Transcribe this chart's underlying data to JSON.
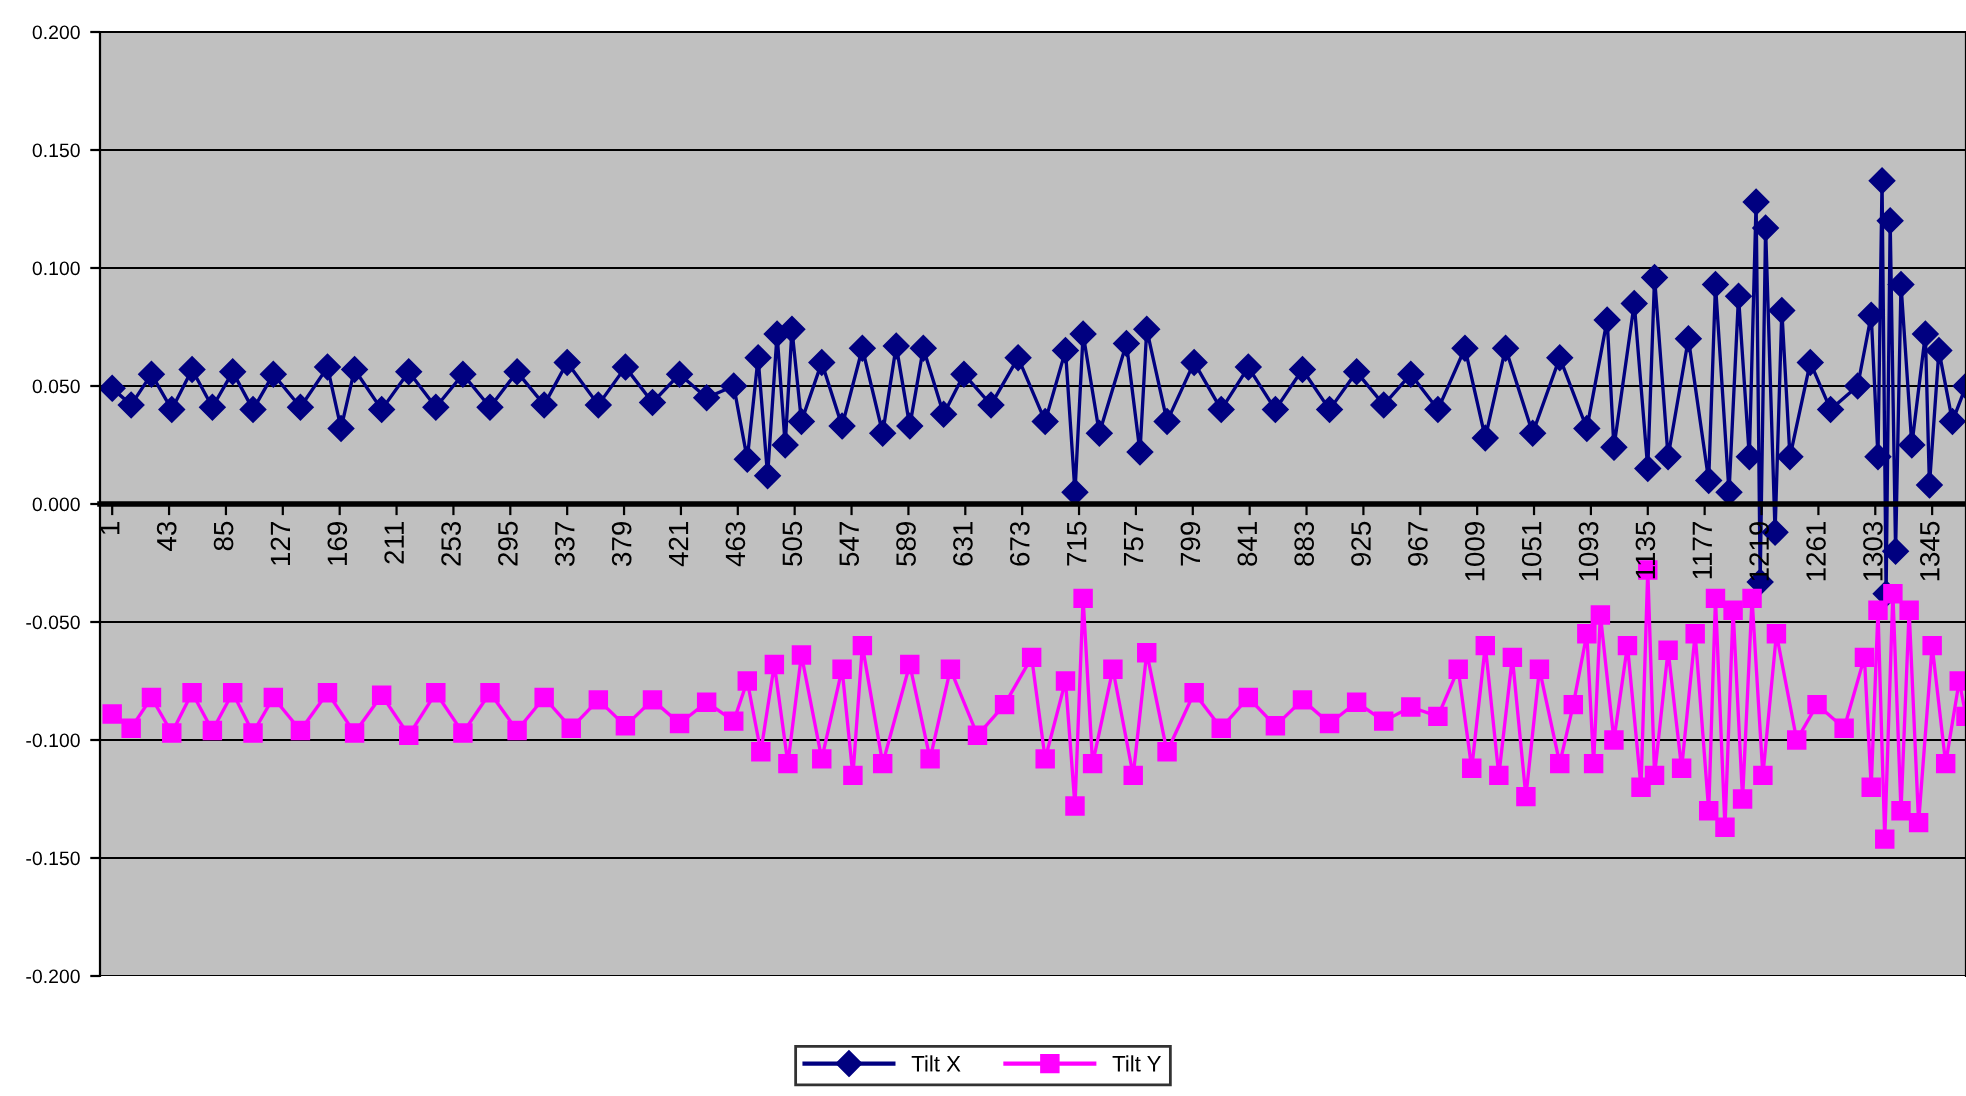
{
  "chart_data": {
    "type": "line",
    "ylim": [
      -0.2,
      0.2
    ],
    "yticks": [
      {
        "value": -0.2,
        "label": "-0.200"
      },
      {
        "value": -0.15,
        "label": "-0.150"
      },
      {
        "value": -0.1,
        "label": "-0.100"
      },
      {
        "value": -0.05,
        "label": "-0.050"
      },
      {
        "value": 0,
        "label": "0.000"
      },
      {
        "value": 0.05,
        "label": "0.050"
      },
      {
        "value": 0.1,
        "label": "0.100"
      },
      {
        "value": 0.15,
        "label": "0.150"
      },
      {
        "value": 0.2,
        "label": "0.200"
      }
    ],
    "xlim": [
      -8,
      1370
    ],
    "xticks": [
      1,
      43,
      85,
      127,
      169,
      211,
      253,
      295,
      337,
      379,
      421,
      463,
      505,
      547,
      589,
      631,
      673,
      715,
      757,
      799,
      841,
      883,
      925,
      967,
      1009,
      1051,
      1093,
      1135,
      1177,
      1219,
      1261,
      1303,
      1345
    ],
    "grid": "y",
    "legend": "bottom",
    "line_style": "solid",
    "series": [
      {
        "name": "Tilt X",
        "color": "#000080",
        "marker": "diamond",
        "x": [
          1,
          15,
          30,
          45,
          60,
          75,
          90,
          105,
          120,
          140,
          160,
          170,
          180,
          200,
          220,
          240,
          260,
          280,
          300,
          320,
          337,
          360,
          380,
          400,
          420,
          440,
          460,
          470,
          478,
          485,
          492,
          498,
          503,
          510,
          525,
          540,
          555,
          570,
          580,
          590,
          600,
          615,
          630,
          650,
          670,
          690,
          705,
          712,
          718,
          730,
          750,
          760,
          765,
          780,
          800,
          820,
          840,
          860,
          880,
          900,
          920,
          940,
          960,
          980,
          1000,
          1015,
          1030,
          1050,
          1070,
          1090,
          1105,
          1110,
          1125,
          1135,
          1140,
          1150,
          1165,
          1180,
          1185,
          1195,
          1202,
          1210,
          1215,
          1218,
          1222,
          1229,
          1234,
          1240,
          1255,
          1270,
          1290,
          1300,
          1305,
          1308,
          1311,
          1314,
          1318,
          1322,
          1330,
          1340,
          1343,
          1350,
          1360,
          1370
        ],
        "values": [
          0.049,
          0.042,
          0.055,
          0.04,
          0.057,
          0.041,
          0.056,
          0.04,
          0.055,
          0.041,
          0.058,
          0.032,
          0.057,
          0.04,
          0.056,
          0.041,
          0.055,
          0.041,
          0.056,
          0.042,
          0.06,
          0.042,
          0.058,
          0.043,
          0.055,
          0.045,
          0.05,
          0.019,
          0.062,
          0.012,
          0.072,
          0.025,
          0.074,
          0.035,
          0.06,
          0.033,
          0.066,
          0.03,
          0.067,
          0.033,
          0.066,
          0.038,
          0.055,
          0.042,
          0.062,
          0.035,
          0.065,
          0.005,
          0.072,
          0.03,
          0.068,
          0.022,
          0.074,
          0.035,
          0.06,
          0.04,
          0.058,
          0.04,
          0.057,
          0.04,
          0.056,
          0.042,
          0.055,
          0.04,
          0.066,
          0.028,
          0.066,
          0.03,
          0.062,
          0.032,
          0.078,
          0.024,
          0.085,
          0.015,
          0.096,
          0.02,
          0.07,
          0.01,
          0.093,
          0.005,
          0.088,
          0.02,
          0.128,
          -0.033,
          0.117,
          -0.012,
          0.082,
          0.02,
          0.06,
          0.04,
          0.05,
          0.08,
          0.02,
          0.137,
          -0.038,
          0.12,
          -0.02,
          0.093,
          0.025,
          0.072,
          0.008,
          0.065,
          0.035,
          0.05
        ]
      },
      {
        "name": "Tilt Y",
        "color": "#ff00ff",
        "marker": "square",
        "x": [
          1,
          15,
          30,
          45,
          60,
          75,
          90,
          105,
          120,
          140,
          160,
          180,
          200,
          220,
          240,
          260,
          280,
          300,
          320,
          340,
          360,
          380,
          400,
          420,
          440,
          460,
          470,
          480,
          490,
          500,
          510,
          525,
          540,
          548,
          555,
          570,
          590,
          605,
          620,
          640,
          660,
          680,
          690,
          705,
          712,
          718,
          725,
          740,
          755,
          765,
          780,
          800,
          820,
          840,
          860,
          880,
          900,
          920,
          940,
          960,
          980,
          995,
          1005,
          1015,
          1025,
          1035,
          1045,
          1055,
          1070,
          1080,
          1090,
          1095,
          1100,
          1110,
          1120,
          1130,
          1135,
          1140,
          1150,
          1160,
          1170,
          1180,
          1185,
          1192,
          1198,
          1205,
          1212,
          1220,
          1230,
          1245,
          1260,
          1280,
          1295,
          1300,
          1305,
          1310,
          1316,
          1322,
          1328,
          1335,
          1345,
          1355,
          1365,
          1370
        ],
        "values": [
          -0.089,
          -0.095,
          -0.082,
          -0.097,
          -0.08,
          -0.096,
          -0.08,
          -0.097,
          -0.082,
          -0.096,
          -0.08,
          -0.097,
          -0.081,
          -0.098,
          -0.08,
          -0.097,
          -0.08,
          -0.096,
          -0.082,
          -0.095,
          -0.083,
          -0.094,
          -0.083,
          -0.093,
          -0.084,
          -0.092,
          -0.075,
          -0.105,
          -0.068,
          -0.11,
          -0.064,
          -0.108,
          -0.07,
          -0.115,
          -0.06,
          -0.11,
          -0.068,
          -0.108,
          -0.07,
          -0.098,
          -0.085,
          -0.065,
          -0.108,
          -0.075,
          -0.128,
          -0.04,
          -0.11,
          -0.07,
          -0.115,
          -0.063,
          -0.105,
          -0.08,
          -0.095,
          -0.082,
          -0.094,
          -0.083,
          -0.093,
          -0.084,
          -0.092,
          -0.086,
          -0.09,
          -0.07,
          -0.112,
          -0.06,
          -0.115,
          -0.065,
          -0.124,
          -0.07,
          -0.11,
          -0.085,
          -0.055,
          -0.11,
          -0.047,
          -0.1,
          -0.06,
          -0.12,
          -0.028,
          -0.115,
          -0.062,
          -0.112,
          -0.055,
          -0.13,
          -0.04,
          -0.137,
          -0.045,
          -0.125,
          -0.04,
          -0.115,
          -0.055,
          -0.1,
          -0.085,
          -0.095,
          -0.065,
          -0.12,
          -0.045,
          -0.142,
          -0.038,
          -0.13,
          -0.045,
          -0.135,
          -0.06,
          -0.11,
          -0.075,
          -0.09
        ]
      }
    ]
  }
}
